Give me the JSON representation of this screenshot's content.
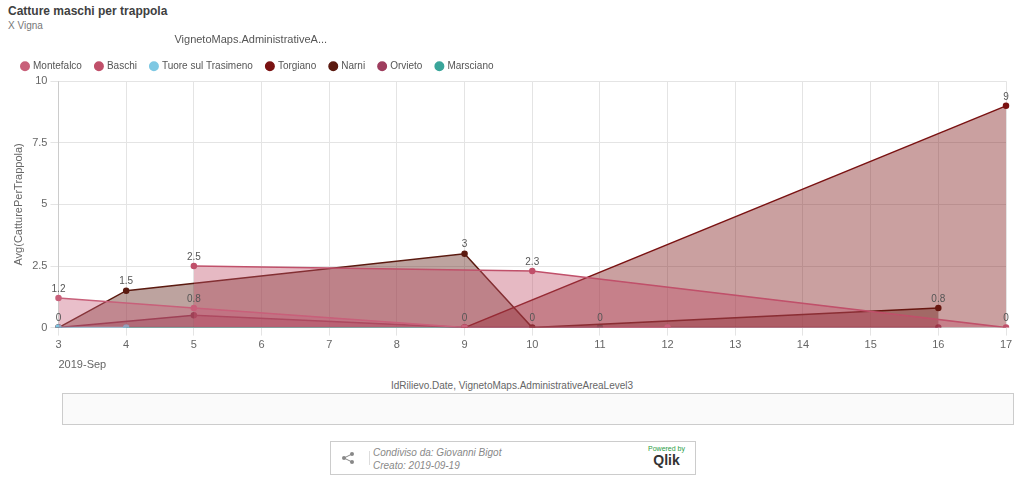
{
  "chart_data": {
    "type": "area",
    "title": "Catture maschi per trappola",
    "subtitle": "X Vigna",
    "y_label": "Avg(CatturePerTrappola)",
    "x_label": "IdRilievo.Date, VignetoMaps.AdministrativeAreaLevel3",
    "x_period": "2019-Sep",
    "legend_title": "VignetoMaps.AdministrativeA...",
    "legend": "top",
    "grid": true,
    "data_labels": true,
    "categories": [
      "3",
      "4",
      "5",
      "6",
      "7",
      "8",
      "9",
      "10",
      "11",
      "12",
      "13",
      "14",
      "15",
      "16",
      "17"
    ],
    "ylim": [
      0,
      10
    ],
    "yticks": [
      0,
      2.5,
      5,
      7.5,
      10
    ],
    "series": [
      {
        "name": "Montefalco",
        "color": "#c8607a",
        "values": [
          1.2,
          null,
          0.8,
          null,
          null,
          null,
          0,
          null,
          null,
          0,
          null,
          null,
          null,
          null,
          null
        ],
        "value_labels": [
          "1.2",
          null,
          "0.8",
          null,
          null,
          null,
          null,
          null,
          null,
          null,
          null,
          null,
          null,
          null,
          null
        ]
      },
      {
        "name": "Baschi",
        "color": "#c0506a",
        "values": [
          null,
          null,
          2.5,
          null,
          null,
          null,
          null,
          2.3,
          null,
          null,
          null,
          null,
          null,
          null,
          0
        ],
        "value_labels": [
          null,
          null,
          "2.5",
          null,
          null,
          null,
          null,
          "2.3",
          null,
          null,
          null,
          null,
          null,
          null,
          "0"
        ]
      },
      {
        "name": "Tuore sul Trasimeno",
        "color": "#7ec8e3",
        "values": [
          0,
          0,
          null,
          null,
          null,
          null,
          null,
          null,
          null,
          null,
          null,
          null,
          null,
          null,
          null
        ],
        "value_labels": [
          null,
          null,
          null,
          null,
          null,
          null,
          null,
          null,
          null,
          null,
          null,
          null,
          null,
          null,
          null
        ]
      },
      {
        "name": "Torgiano",
        "color": "#7a1212",
        "values": [
          null,
          null,
          null,
          null,
          null,
          null,
          0,
          null,
          null,
          null,
          null,
          null,
          null,
          null,
          9
        ],
        "value_labels": [
          null,
          null,
          null,
          null,
          null,
          null,
          "0",
          null,
          null,
          null,
          null,
          null,
          null,
          null,
          "9"
        ]
      },
      {
        "name": "Narni",
        "color": "#5b1a10",
        "values": [
          0,
          1.5,
          null,
          null,
          null,
          null,
          3,
          0,
          null,
          null,
          null,
          null,
          null,
          0.8,
          null
        ],
        "value_labels": [
          null,
          "1.5",
          null,
          null,
          null,
          null,
          "3",
          "0",
          null,
          null,
          null,
          null,
          null,
          "0.8",
          null
        ]
      },
      {
        "name": "Orvieto",
        "color": "#9e3d5e",
        "values": [
          0,
          null,
          0.5,
          null,
          null,
          null,
          0,
          null,
          null,
          null,
          null,
          null,
          null,
          0,
          null
        ],
        "value_labels": [
          "0",
          null,
          null,
          null,
          null,
          null,
          null,
          null,
          null,
          null,
          null,
          null,
          null,
          null,
          null
        ]
      },
      {
        "name": "Marsciano",
        "color": "#3aa59a",
        "values": [
          null,
          0,
          null,
          null,
          null,
          null,
          null,
          null,
          0,
          null,
          null,
          null,
          null,
          null,
          null
        ],
        "value_labels": [
          null,
          null,
          null,
          null,
          null,
          null,
          null,
          null,
          "0",
          null,
          null,
          null,
          null,
          null,
          null
        ]
      }
    ],
    "footer": {
      "shared_by": "Condiviso da: Giovanni Bigot",
      "created": "Creato: 2019-09-19",
      "powered": "Powered by",
      "brand": "Qlik"
    }
  }
}
